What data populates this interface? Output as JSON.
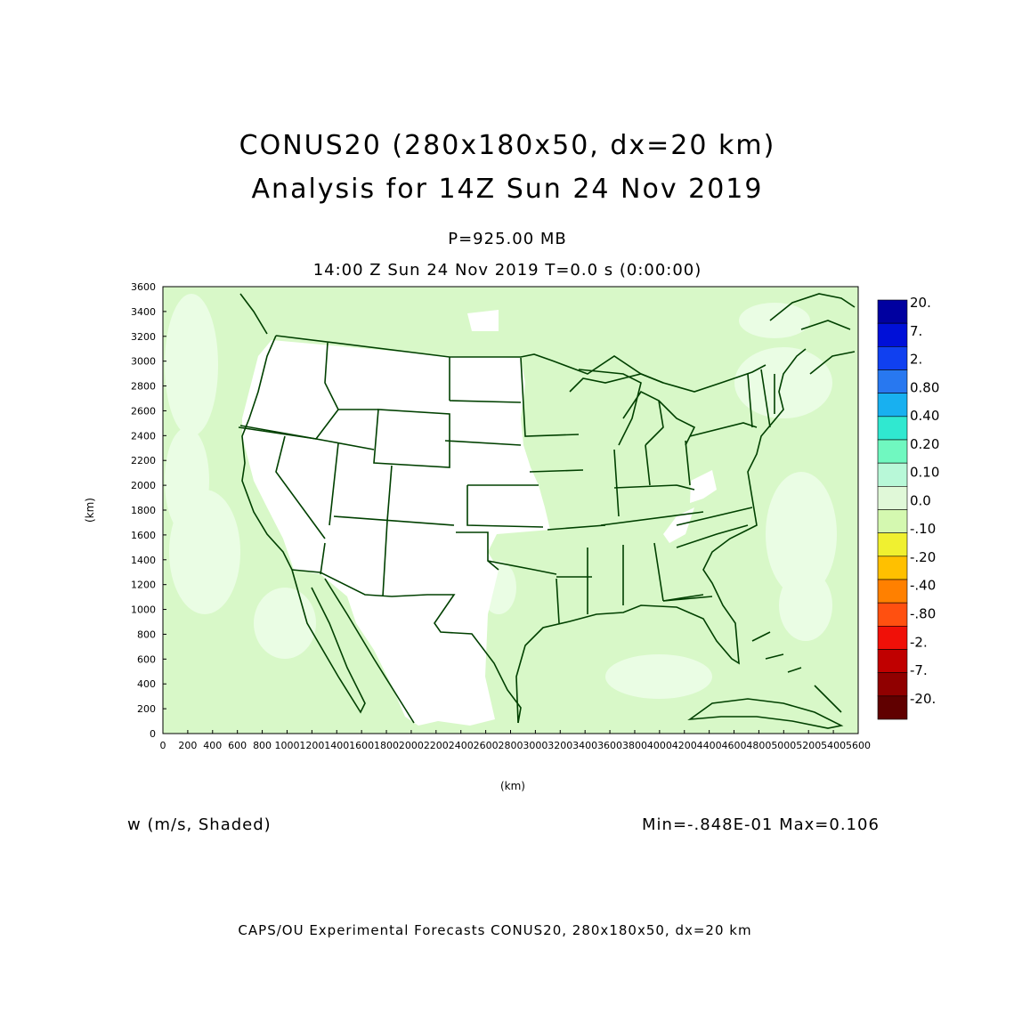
{
  "header": {
    "title_line1": "CONUS20 (280x180x50, dx=20 km)",
    "title_line2": "Analysis for 14Z Sun 24 Nov 2019",
    "level": "P=925.00 MB",
    "time_line": "14:00 Z Sun 24 Nov 2019    T=0.0 s (0:00:00)"
  },
  "field": {
    "label": "w (m/s, Shaded)",
    "minmax": "Min=-.848E-01 Max=0.106"
  },
  "footer": "CAPS/OU Experimental Forecasts  CONUS20, 280x180x50, dx=20 km",
  "axes": {
    "x_unit": "(km)",
    "y_unit": "(km)",
    "x_ticks": [
      "0",
      "200",
      "400",
      "600",
      "800",
      "1000",
      "1200",
      "1400",
      "1600",
      "1800",
      "2000",
      "2200",
      "2400",
      "2600",
      "2800",
      "3000",
      "3200",
      "3400",
      "3600",
      "3800",
      "4000",
      "4200",
      "4400",
      "4600",
      "4800",
      "5000",
      "5200",
      "5400",
      "5600"
    ],
    "y_ticks": [
      "0",
      "200",
      "400",
      "600",
      "800",
      "1000",
      "1200",
      "1400",
      "1600",
      "1800",
      "2000",
      "2200",
      "2400",
      "2600",
      "2800",
      "3000",
      "3200",
      "3400",
      "3600"
    ],
    "x_range": [
      0,
      5600
    ],
    "y_range": [
      0,
      3600
    ]
  },
  "colorbar": {
    "labels": [
      "20.",
      "7.",
      "2.",
      "0.80",
      "0.40",
      "0.20",
      "0.10",
      "0.0",
      "-.10",
      "-.20",
      "-.40",
      "-.80",
      "-2.",
      "-7.",
      "-20."
    ],
    "colors": [
      "#0000a0",
      "#0010d8",
      "#1040f0",
      "#2878f0",
      "#18b0f0",
      "#30e8d0",
      "#70f8c0",
      "#b8f8d8",
      "#e0f8d8",
      "#d4f8b0",
      "#f0f030",
      "#ffc000",
      "#ff8000",
      "#ff5010",
      "#f01008",
      "#c00000",
      "#900000",
      "#600000"
    ]
  },
  "map": {
    "bg_color": "#d8f8c8",
    "land_color": "#ffffff",
    "light_color": "#eafde4",
    "line_color": "#004000"
  }
}
